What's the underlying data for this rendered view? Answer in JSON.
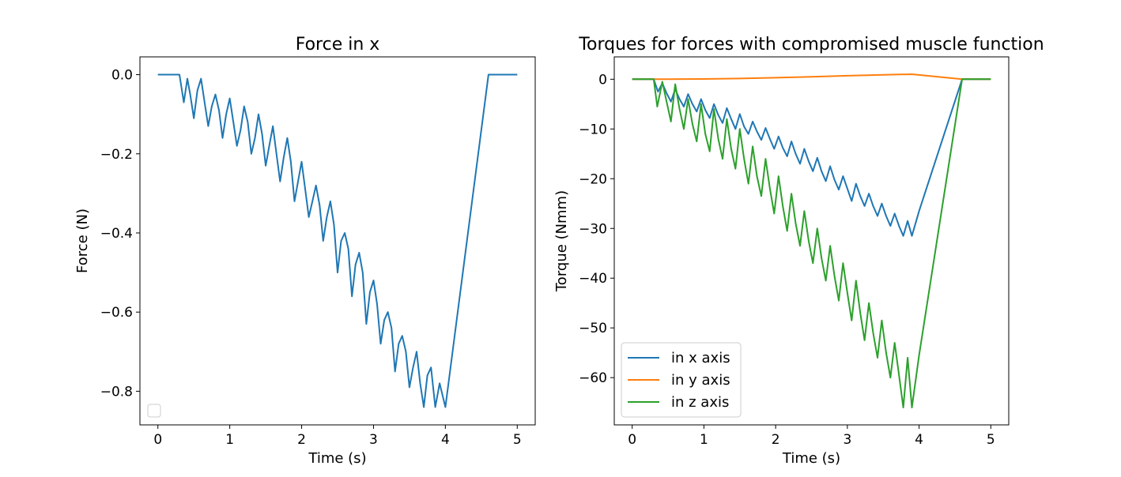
{
  "chart_data": [
    {
      "type": "line",
      "title": "Force in x",
      "xlabel": "Time (s)",
      "ylabel": "Force (N)",
      "xlim": [
        -0.25,
        5.25
      ],
      "ylim": [
        -0.885,
        0.045
      ],
      "xticks": [
        0,
        1,
        2,
        3,
        4,
        5
      ],
      "yticks": [
        0.0,
        -0.2,
        -0.4,
        -0.6,
        -0.8
      ],
      "ytick_labels": [
        "0.0",
        "−0.2",
        "−0.4",
        "−0.6",
        "−0.8"
      ],
      "xtick_labels": [
        "0",
        "1",
        "2",
        "3",
        "4",
        "5"
      ],
      "legend": {
        "placement": "lower-left",
        "entries": []
      },
      "series": [
        {
          "color": "#1f77b4",
          "x": [
            0,
            0.3,
            0.36,
            0.41,
            0.45,
            0.5,
            0.55,
            0.6,
            0.65,
            0.7,
            0.75,
            0.8,
            0.85,
            0.9,
            0.95,
            1.0,
            1.05,
            1.1,
            1.15,
            1.2,
            1.25,
            1.3,
            1.35,
            1.4,
            1.45,
            1.5,
            1.55,
            1.6,
            1.65,
            1.7,
            1.75,
            1.8,
            1.85,
            1.9,
            1.95,
            2.0,
            2.05,
            2.1,
            2.15,
            2.2,
            2.25,
            2.3,
            2.35,
            2.4,
            2.45,
            2.5,
            2.55,
            2.6,
            2.65,
            2.7,
            2.75,
            2.8,
            2.85,
            2.9,
            2.95,
            3.0,
            3.05,
            3.1,
            3.15,
            3.2,
            3.25,
            3.3,
            3.35,
            3.4,
            3.45,
            3.5,
            3.55,
            3.6,
            3.65,
            3.7,
            3.75,
            3.8,
            3.86,
            3.92,
            4.0,
            4.6,
            5.0
          ],
          "y": [
            0,
            0,
            -0.07,
            -0.01,
            -0.05,
            -0.11,
            -0.04,
            -0.01,
            -0.07,
            -0.13,
            -0.08,
            -0.05,
            -0.09,
            -0.16,
            -0.1,
            -0.06,
            -0.12,
            -0.18,
            -0.14,
            -0.08,
            -0.12,
            -0.2,
            -0.16,
            -0.1,
            -0.15,
            -0.23,
            -0.18,
            -0.13,
            -0.2,
            -0.27,
            -0.21,
            -0.16,
            -0.22,
            -0.32,
            -0.27,
            -0.22,
            -0.29,
            -0.36,
            -0.32,
            -0.28,
            -0.33,
            -0.42,
            -0.36,
            -0.32,
            -0.38,
            -0.5,
            -0.42,
            -0.4,
            -0.44,
            -0.56,
            -0.48,
            -0.45,
            -0.5,
            -0.63,
            -0.55,
            -0.52,
            -0.58,
            -0.68,
            -0.62,
            -0.6,
            -0.64,
            -0.75,
            -0.68,
            -0.66,
            -0.7,
            -0.79,
            -0.74,
            -0.7,
            -0.78,
            -0.84,
            -0.76,
            -0.74,
            -0.84,
            -0.78,
            -0.84,
            0,
            0
          ]
        }
      ]
    },
    {
      "type": "line",
      "title": "Torques for forces with compromised muscle function",
      "xlabel": "Time (s)",
      "ylabel": "Torque (Nmm)",
      "xlim": [
        -0.25,
        5.25
      ],
      "ylim": [
        -69.5,
        4.5
      ],
      "xticks": [
        0,
        1,
        2,
        3,
        4,
        5
      ],
      "yticks": [
        0,
        -10,
        -20,
        -30,
        -40,
        -50,
        -60
      ],
      "ytick_labels": [
        "0",
        "−10",
        "−20",
        "−30",
        "−40",
        "−50",
        "−60"
      ],
      "xtick_labels": [
        "0",
        "1",
        "2",
        "3",
        "4",
        "5"
      ],
      "legend": {
        "placement": "lower-left",
        "entries": [
          "in x axis",
          "in y axis",
          "in z axis"
        ]
      },
      "series": [
        {
          "name": "in x axis",
          "color": "#1f77b4",
          "x": [
            0,
            0.3,
            0.36,
            0.42,
            0.48,
            0.54,
            0.6,
            0.66,
            0.72,
            0.78,
            0.84,
            0.9,
            0.96,
            1.02,
            1.08,
            1.14,
            1.2,
            1.26,
            1.32,
            1.38,
            1.44,
            1.5,
            1.56,
            1.62,
            1.68,
            1.74,
            1.8,
            1.86,
            1.92,
            1.98,
            2.04,
            2.1,
            2.16,
            2.22,
            2.28,
            2.34,
            2.4,
            2.46,
            2.52,
            2.58,
            2.64,
            2.7,
            2.76,
            2.82,
            2.88,
            2.94,
            3.0,
            3.06,
            3.12,
            3.18,
            3.24,
            3.3,
            3.36,
            3.42,
            3.48,
            3.54,
            3.6,
            3.66,
            3.72,
            3.78,
            3.84,
            3.9,
            4.0,
            4.6,
            5.0
          ],
          "y": [
            0,
            0,
            -2.5,
            -0.8,
            -2.8,
            -4.5,
            -2.0,
            -4.0,
            -5.5,
            -3.0,
            -5.0,
            -6.5,
            -4.0,
            -6.2,
            -7.8,
            -5.0,
            -7.2,
            -8.8,
            -5.8,
            -8.0,
            -10.0,
            -7.0,
            -9.5,
            -11.0,
            -8.5,
            -10.5,
            -12.2,
            -9.8,
            -12.0,
            -14.0,
            -11.5,
            -13.8,
            -15.5,
            -12.5,
            -15.0,
            -17.0,
            -14.0,
            -16.5,
            -18.5,
            -15.8,
            -18.5,
            -20.5,
            -17.5,
            -20.2,
            -22.2,
            -19.5,
            -22.0,
            -24.5,
            -21.0,
            -23.5,
            -25.5,
            -23.0,
            -25.5,
            -27.5,
            -25.0,
            -27.5,
            -29.5,
            -27.0,
            -29.5,
            -31.5,
            -28.5,
            -31.5,
            -26.5,
            0,
            0
          ]
        },
        {
          "name": "in y axis",
          "color": "#ff7f0e",
          "x": [
            0,
            0.5,
            1.0,
            1.5,
            2.0,
            2.5,
            3.0,
            3.5,
            3.9,
            4.6,
            5.0
          ],
          "y": [
            0,
            0,
            0.05,
            0.15,
            0.3,
            0.5,
            0.7,
            0.9,
            1.0,
            0,
            0
          ]
        },
        {
          "name": "in z axis",
          "color": "#2ca02c",
          "x": [
            0,
            0.3,
            0.35,
            0.42,
            0.48,
            0.54,
            0.6,
            0.66,
            0.72,
            0.78,
            0.84,
            0.9,
            0.96,
            1.02,
            1.08,
            1.14,
            1.2,
            1.26,
            1.32,
            1.38,
            1.44,
            1.5,
            1.56,
            1.62,
            1.68,
            1.74,
            1.8,
            1.86,
            1.92,
            1.98,
            2.04,
            2.1,
            2.16,
            2.22,
            2.28,
            2.34,
            2.4,
            2.46,
            2.52,
            2.58,
            2.64,
            2.7,
            2.76,
            2.82,
            2.88,
            2.94,
            3.0,
            3.06,
            3.12,
            3.18,
            3.24,
            3.3,
            3.36,
            3.42,
            3.48,
            3.54,
            3.6,
            3.66,
            3.72,
            3.78,
            3.84,
            3.9,
            4.0,
            4.6,
            5.0
          ],
          "y": [
            0,
            0,
            -5.5,
            -0.5,
            -4.5,
            -8.5,
            -1.0,
            -6.0,
            -10.0,
            -4.0,
            -9.0,
            -12.5,
            -5.0,
            -11.0,
            -14.5,
            -6.0,
            -12.0,
            -16.0,
            -8.0,
            -14.0,
            -18.0,
            -10.0,
            -16.0,
            -21.0,
            -13.5,
            -19.5,
            -23.5,
            -16.0,
            -22.0,
            -27.0,
            -19.5,
            -25.5,
            -30.5,
            -23.0,
            -29.0,
            -33.5,
            -26.5,
            -32.5,
            -37.0,
            -30.0,
            -36.0,
            -40.5,
            -33.5,
            -39.5,
            -44.5,
            -37.0,
            -43.0,
            -48.5,
            -40.5,
            -47.0,
            -52.5,
            -45.0,
            -51.0,
            -56.0,
            -48.5,
            -55.0,
            -60.0,
            -53.0,
            -59.5,
            -66.0,
            -56.0,
            -66.0,
            -55.5,
            0,
            0
          ]
        }
      ]
    }
  ]
}
